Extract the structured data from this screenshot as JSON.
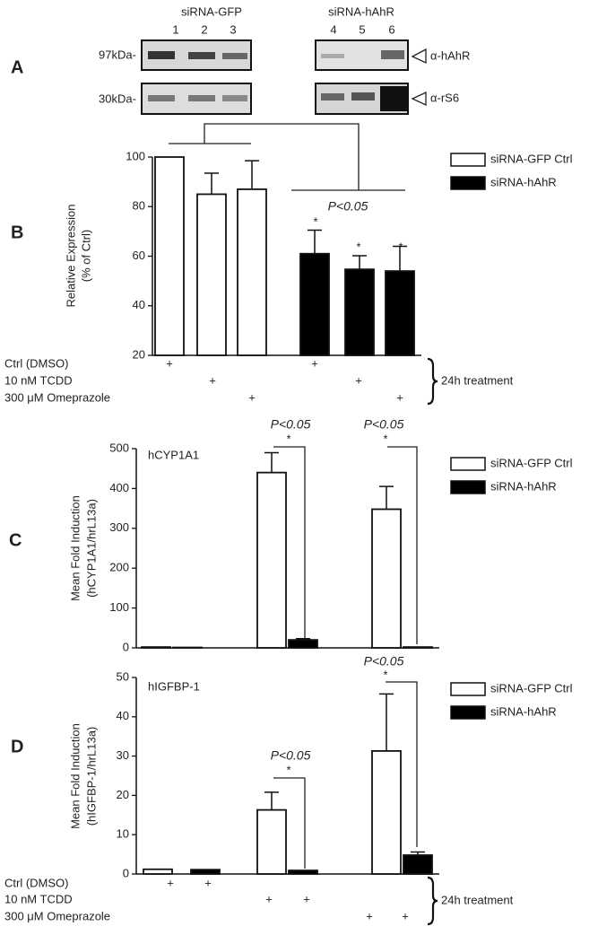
{
  "panel_labels": [
    "A",
    "B",
    "C",
    "D"
  ],
  "blot": {
    "groups": [
      "siRNA-GFP",
      "siRNA-hAhR"
    ],
    "lanes": [
      "1",
      "2",
      "3",
      "4",
      "5",
      "6"
    ],
    "sizes": [
      "97kDa-",
      "30kDa-"
    ],
    "antibodies": [
      "α-hAhR",
      "α-rS6"
    ]
  },
  "chart_data": [
    {
      "type": "bar",
      "ylabel": [
        "Relative Expression",
        "(% of Ctrl)"
      ],
      "categories": [
        null,
        null,
        null,
        null,
        null,
        null
      ],
      "series": [
        {
          "name": "siRNA-GFP Ctrl",
          "color": "#ffffff",
          "values": [
            100,
            85,
            87,
            null,
            null,
            null
          ],
          "errors": [
            null,
            8.5,
            11.5,
            null,
            null,
            null
          ]
        },
        {
          "name": "siRNA-hAhR",
          "color": "#000000",
          "values": [
            null,
            null,
            null,
            61,
            54.7,
            54
          ],
          "errors": [
            null,
            null,
            null,
            9.5,
            5.5,
            10
          ]
        }
      ],
      "ylim": [
        20,
        100
      ],
      "yticks": [
        20,
        40,
        60,
        80,
        100
      ],
      "annotations": [
        "P<0.05",
        "*",
        "*",
        "*"
      ],
      "treatments": [
        {
          "label": "Ctrl (DMSO)",
          "marks": [
            "+",
            null,
            null,
            "+",
            null,
            null
          ]
        },
        {
          "label": "10 nM TCDD",
          "marks": [
            null,
            "+",
            null,
            null,
            "+",
            null
          ]
        },
        {
          "label": "300 μM Omeprazole",
          "marks": [
            null,
            null,
            "+",
            null,
            null,
            "+"
          ]
        }
      ],
      "brace_label": "24h treatment"
    },
    {
      "type": "bar",
      "ylabel": [
        "Mean Fold Induction",
        "(hCYP1A1/hrL13a)"
      ],
      "categories": [
        null,
        null,
        null
      ],
      "series": [
        {
          "name": "siRNA-GFP Ctrl",
          "color": "#ffffff",
          "values": [
            2,
            440,
            348
          ],
          "errors": [
            null,
            50,
            57
          ]
        },
        {
          "name": "siRNA-hAhR",
          "color": "#000000",
          "values": [
            1,
            20,
            2
          ],
          "errors": [
            null,
            3,
            null
          ]
        }
      ],
      "ylim": [
        0,
        500
      ],
      "yticks": [
        0,
        100,
        200,
        300,
        400,
        500
      ],
      "annotations": [
        "hCYP1A1",
        "P<0.05",
        "*",
        "P<0.05",
        "*"
      ]
    },
    {
      "type": "bar",
      "ylabel": [
        "Mean Fold Induction",
        "(hIGFBP-1/hrL13a)"
      ],
      "categories": [
        null,
        null,
        null
      ],
      "series": [
        {
          "name": "siRNA-GFP Ctrl",
          "color": "#ffffff",
          "values": [
            1.2,
            16.3,
            31.3
          ],
          "errors": [
            null,
            4.5,
            14.5
          ]
        },
        {
          "name": "siRNA-hAhR",
          "color": "#000000",
          "values": [
            1.1,
            0.9,
            4.8
          ],
          "errors": [
            null,
            null,
            0.8
          ]
        }
      ],
      "ylim": [
        0,
        50
      ],
      "yticks": [
        0,
        10,
        20,
        30,
        40,
        50
      ],
      "annotations": [
        "hIGFBP-1",
        "P<0.05",
        "*",
        "P<0.05",
        "*"
      ],
      "treatments": [
        {
          "label": "Ctrl (DMSO)",
          "marks": [
            "+",
            "+",
            null,
            null,
            null,
            null
          ]
        },
        {
          "label": "10 nM TCDD",
          "marks": [
            null,
            null,
            "+",
            "+",
            null,
            null
          ]
        },
        {
          "label": "300 μM Omeprazole",
          "marks": [
            null,
            null,
            null,
            null,
            "+",
            "+"
          ]
        }
      ],
      "brace_label": "24h treatment"
    }
  ]
}
